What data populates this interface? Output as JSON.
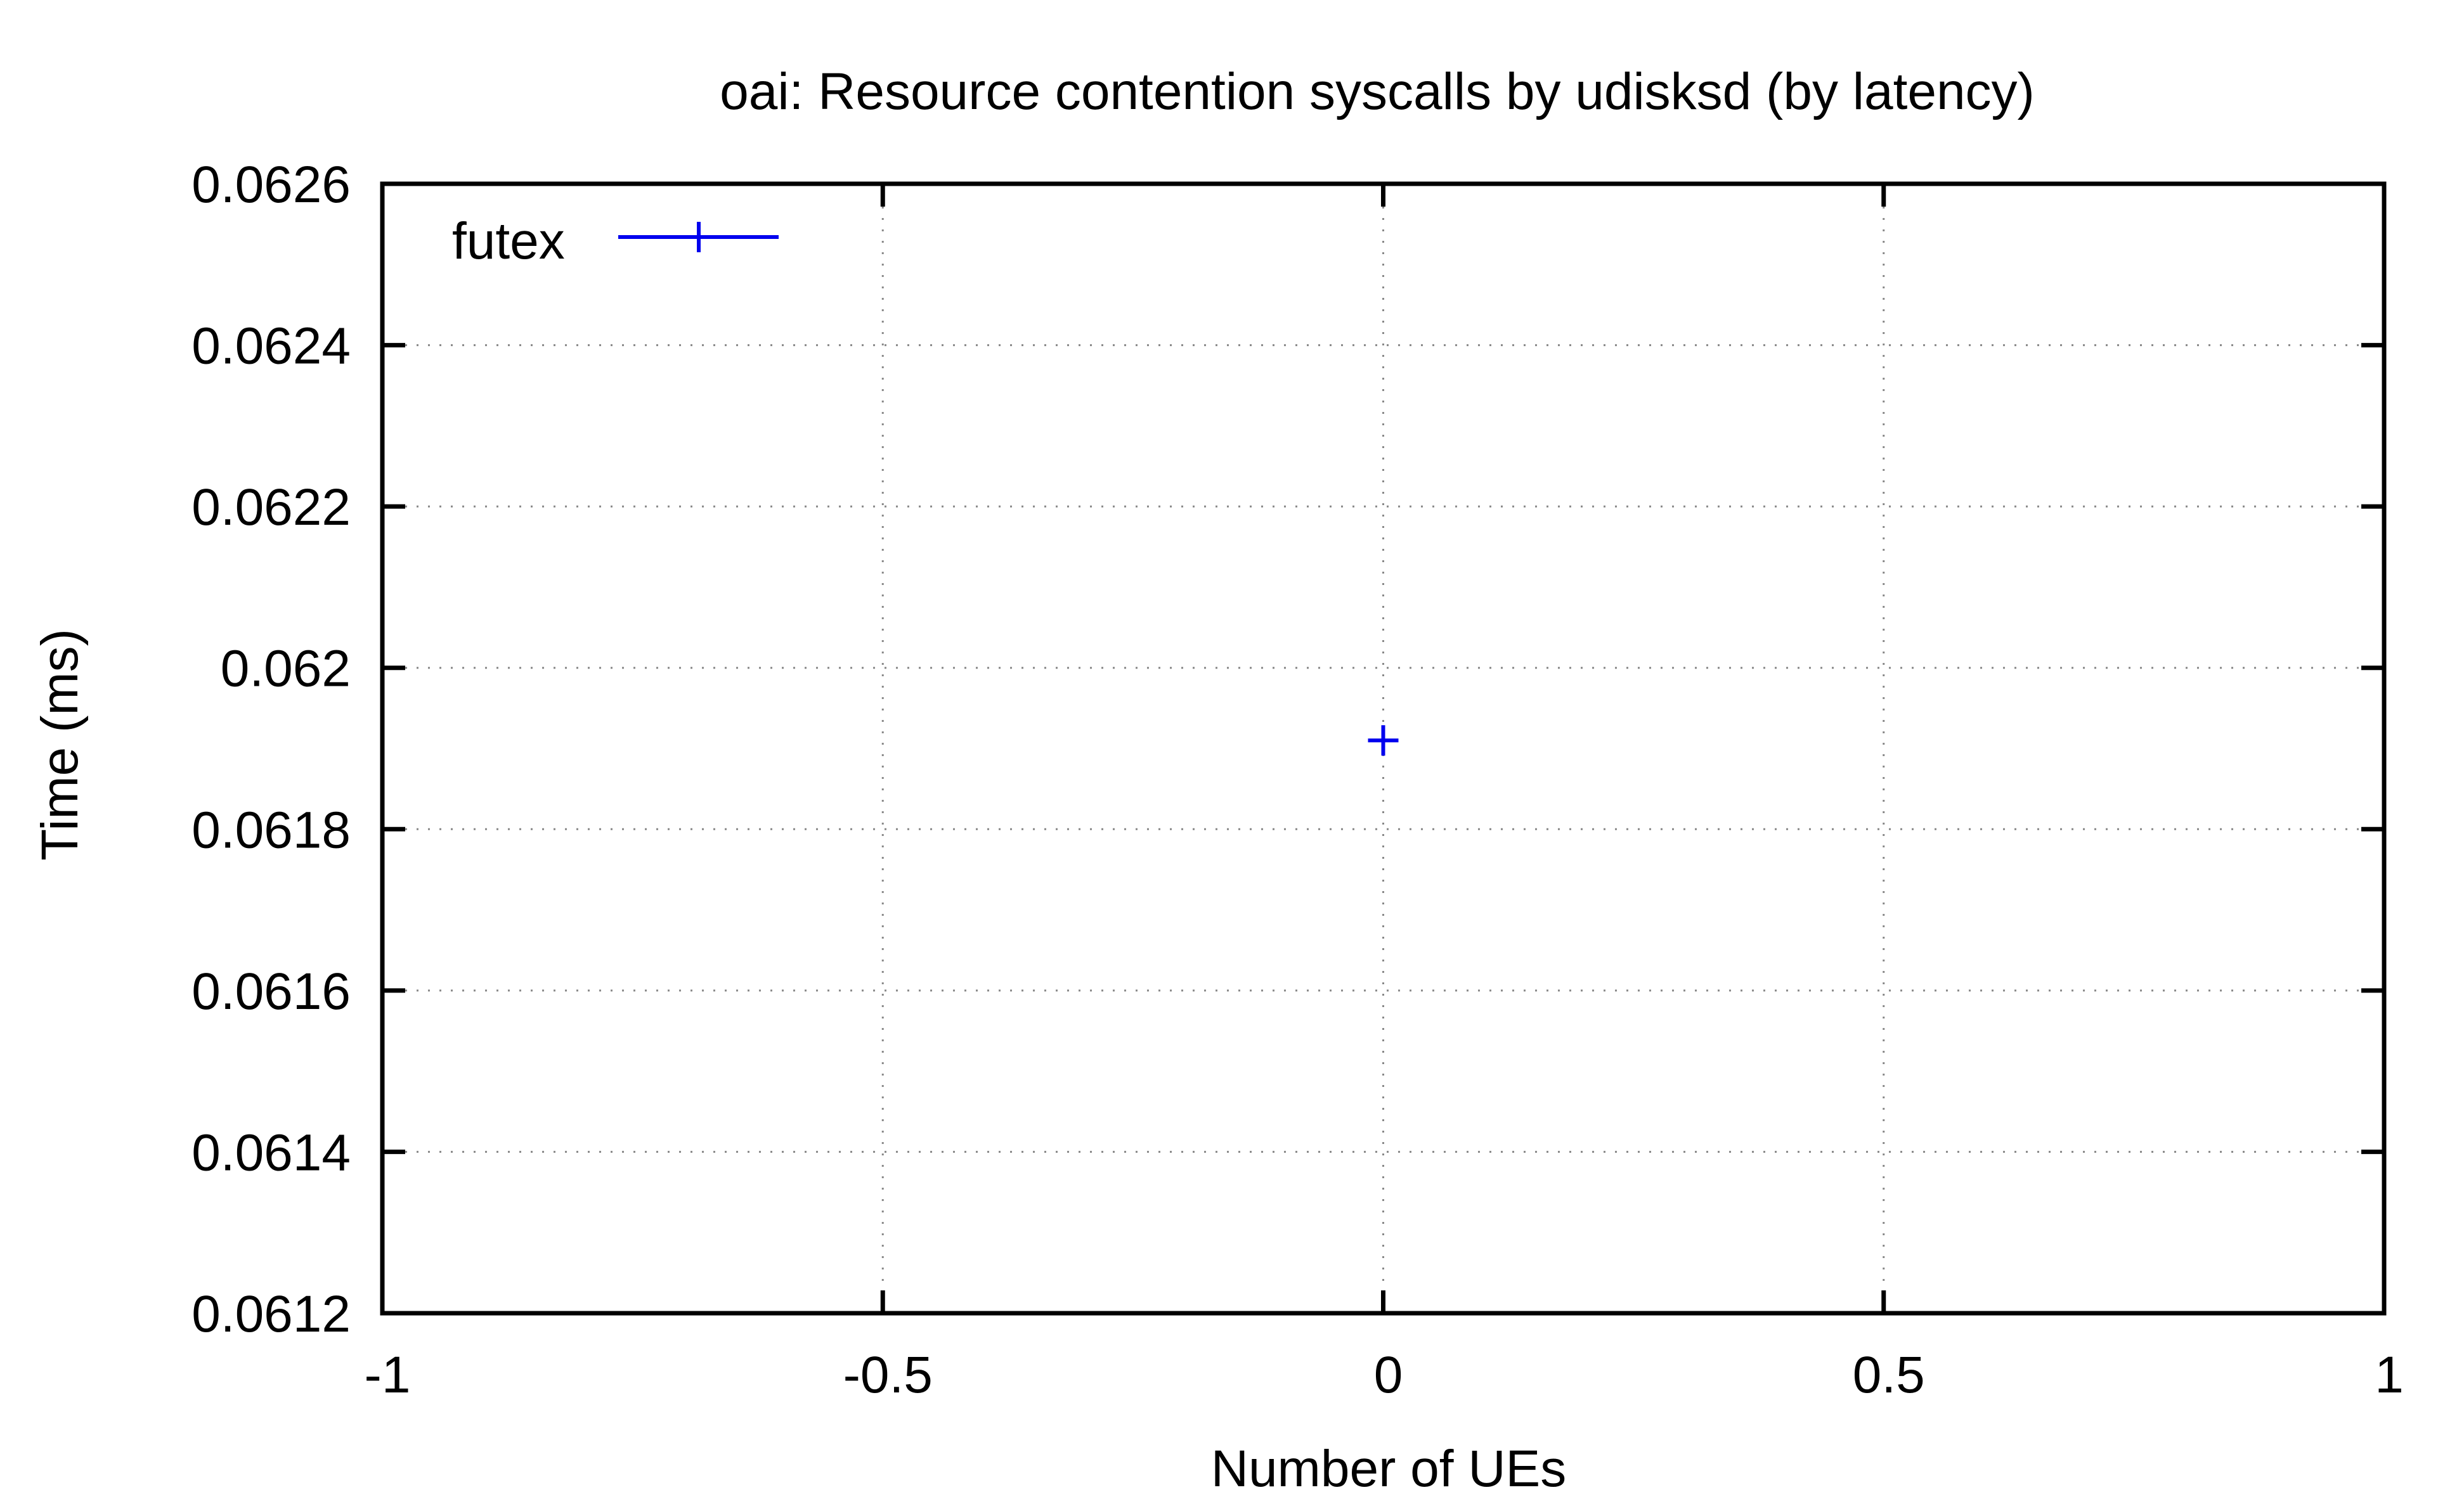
{
  "chart_data": {
    "type": "scatter",
    "title": "oai: Resource contention syscalls by udisksd (by latency)",
    "xlabel": "Number of UEs",
    "ylabel": "Time (ms)",
    "xlim": [
      -1,
      1
    ],
    "ylim": [
      0.0612,
      0.0626
    ],
    "xticks": [
      -1,
      -0.5,
      0,
      0.5,
      1
    ],
    "xtick_labels": [
      "-1",
      "-0.5",
      "0",
      "0.5",
      "1"
    ],
    "yticks": [
      0.0612,
      0.0614,
      0.0616,
      0.0618,
      0.062,
      0.0622,
      0.0624,
      0.0626
    ],
    "ytick_labels": [
      "0.0612",
      "0.0614",
      "0.0616",
      "0.0618",
      "0.062",
      "0.0622",
      "0.0624",
      "0.0626"
    ],
    "grid": true,
    "legend_position": "top-left",
    "series": [
      {
        "name": "futex",
        "color": "#0000ee",
        "marker": "plus",
        "points": [
          {
            "x": 0,
            "y": 0.06191
          }
        ]
      }
    ]
  }
}
